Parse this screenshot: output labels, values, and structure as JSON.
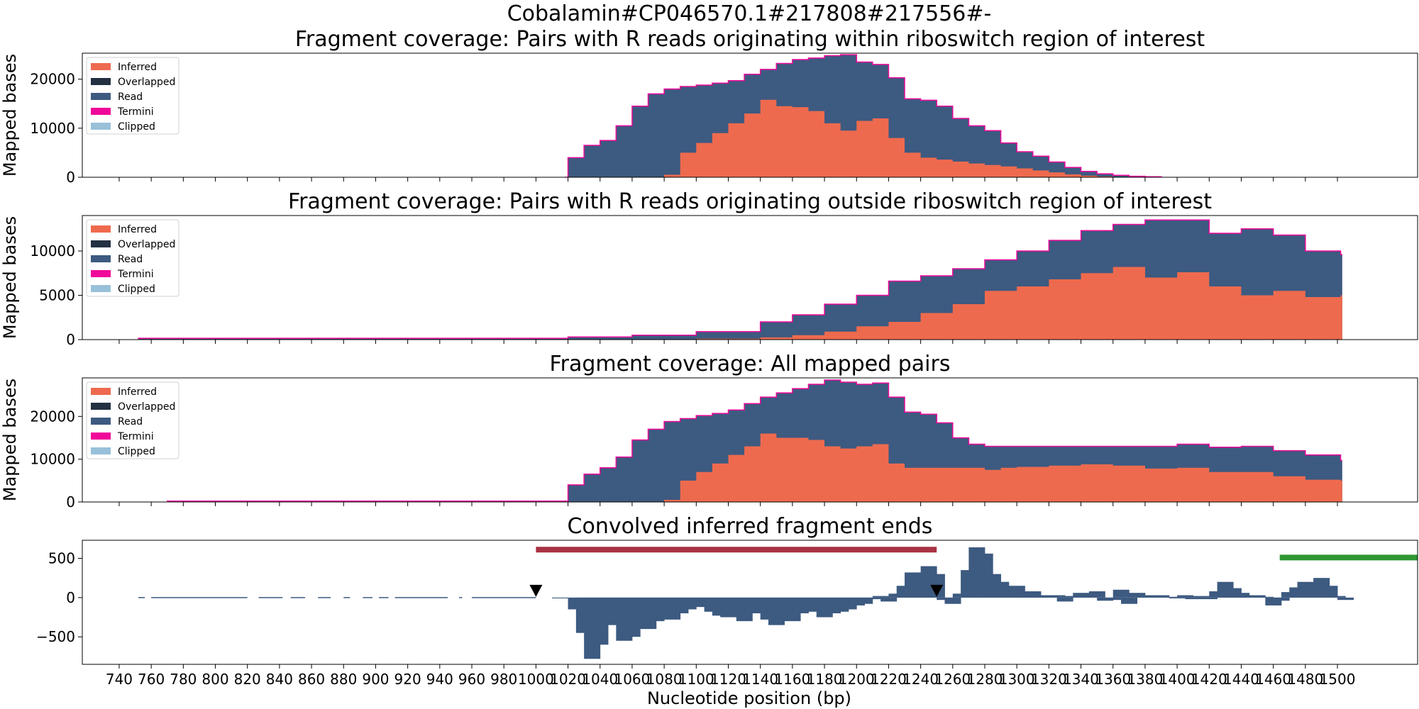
{
  "figure": {
    "suptitle": "Cobalamin#CP046570.1#217808#217556#-",
    "xlabel": "Nucleotide position (bp)"
  },
  "colors": {
    "Inferred": "#ee6a4e",
    "Overlapped": "#233042",
    "Read": "#3d5a80",
    "Termini": "#f0089a",
    "Clipped": "#98c1d9",
    "region_bar": "#a93242",
    "annotation_bar": "#2f9632",
    "marker": "#000000"
  },
  "chart_data": [
    {
      "type": "area",
      "title": "Fragment coverage: Pairs with R reads originating within riboswitch region of interest",
      "ylabel": "Mapped bases",
      "xlim": [
        717,
        1550
      ],
      "ylim": [
        0,
        25300
      ],
      "yticks": [
        0,
        10000,
        20000
      ],
      "legend": {
        "placement": "top-left",
        "entries": [
          "Inferred",
          "Overlapped",
          "Read",
          "Termini",
          "Clipped"
        ]
      },
      "x": [
        1018,
        1020,
        1030,
        1040,
        1050,
        1060,
        1070,
        1080,
        1090,
        1100,
        1110,
        1120,
        1130,
        1140,
        1150,
        1160,
        1170,
        1180,
        1190,
        1200,
        1210,
        1220,
        1230,
        1240,
        1250,
        1260,
        1270,
        1280,
        1290,
        1300,
        1310,
        1320,
        1330,
        1340,
        1350,
        1360,
        1370,
        1380,
        1390
      ],
      "series": [
        {
          "name": "Inferred",
          "values": [
            0,
            0,
            0,
            0,
            0,
            0,
            0,
            500,
            5000,
            7000,
            9000,
            11000,
            13000,
            15800,
            14500,
            14300,
            13500,
            11000,
            9500,
            11500,
            12000,
            8000,
            5000,
            4000,
            3600,
            3200,
            2800,
            2500,
            2200,
            1800,
            1400,
            1000,
            600,
            300,
            150,
            50,
            0,
            0,
            0
          ]
        },
        {
          "name": "Read",
          "values": [
            0,
            4000,
            6500,
            7500,
            10500,
            14500,
            17000,
            18000,
            18500,
            18800,
            19200,
            19700,
            21000,
            22000,
            23200,
            24000,
            24300,
            24800,
            25000,
            23500,
            23000,
            20300,
            16000,
            15700,
            14500,
            12000,
            10500,
            9500,
            7000,
            5200,
            4300,
            3100,
            2000,
            1200,
            700,
            400,
            200,
            100,
            0
          ]
        }
      ]
    },
    {
      "type": "area",
      "title": "Fragment coverage: Pairs with R reads originating outside riboswitch region of interest",
      "ylabel": "Mapped bases",
      "xlim": [
        717,
        1550
      ],
      "ylim": [
        0,
        14000
      ],
      "yticks": [
        0,
        5000,
        10000
      ],
      "legend": {
        "placement": "top-left",
        "entries": [
          "Inferred",
          "Overlapped",
          "Read",
          "Termini",
          "Clipped"
        ]
      },
      "x": [
        752,
        980,
        1020,
        1060,
        1100,
        1140,
        1160,
        1180,
        1200,
        1220,
        1240,
        1260,
        1280,
        1300,
        1320,
        1340,
        1360,
        1380,
        1400,
        1420,
        1440,
        1460,
        1480,
        1502
      ],
      "series": [
        {
          "name": "Inferred",
          "values": [
            0,
            0,
            0,
            0,
            100,
            250,
            500,
            900,
            1500,
            2000,
            3000,
            4000,
            5500,
            6000,
            6800,
            7500,
            8200,
            7000,
            7600,
            6000,
            5000,
            5500,
            4800,
            5000
          ]
        },
        {
          "name": "Read",
          "values": [
            150,
            150,
            300,
            500,
            900,
            2000,
            2800,
            4000,
            5000,
            6600,
            7200,
            8000,
            9000,
            10000,
            11200,
            12300,
            13000,
            13500,
            13500,
            12000,
            12500,
            11800,
            10000,
            9600
          ]
        }
      ]
    },
    {
      "type": "area",
      "title": "Fragment coverage: All mapped pairs",
      "ylabel": "Mapped bases",
      "xlim": [
        717,
        1550
      ],
      "ylim": [
        0,
        29000
      ],
      "yticks": [
        0,
        10000,
        20000
      ],
      "legend": {
        "placement": "top-left",
        "entries": [
          "Inferred",
          "Overlapped",
          "Read",
          "Termini",
          "Clipped"
        ]
      },
      "x": [
        770,
        1018,
        1020,
        1030,
        1040,
        1050,
        1060,
        1070,
        1080,
        1090,
        1100,
        1110,
        1120,
        1130,
        1140,
        1150,
        1160,
        1170,
        1180,
        1190,
        1200,
        1210,
        1220,
        1230,
        1240,
        1250,
        1260,
        1270,
        1280,
        1290,
        1300,
        1320,
        1340,
        1360,
        1380,
        1400,
        1420,
        1440,
        1460,
        1480,
        1502
      ],
      "series": [
        {
          "name": "Inferred",
          "values": [
            0,
            0,
            0,
            0,
            0,
            0,
            0,
            0,
            500,
            5000,
            7000,
            9000,
            11000,
            13000,
            16000,
            15000,
            15000,
            14500,
            13000,
            12500,
            13000,
            13500,
            9000,
            8000,
            8000,
            8000,
            8000,
            8000,
            7500,
            8000,
            8200,
            8500,
            8800,
            8500,
            7800,
            8000,
            7000,
            7000,
            6000,
            5200,
            5000
          ]
        },
        {
          "name": "Read",
          "values": [
            200,
            200,
            4000,
            6500,
            8000,
            10500,
            14500,
            17000,
            18800,
            19500,
            20200,
            20700,
            21500,
            23000,
            24500,
            25500,
            26500,
            27500,
            28500,
            28000,
            27500,
            27800,
            24500,
            21000,
            20500,
            18500,
            15000,
            13500,
            13000,
            13000,
            13000,
            13000,
            13000,
            13000,
            13000,
            13500,
            12800,
            13000,
            12000,
            11000,
            9700
          ]
        }
      ]
    },
    {
      "type": "bar",
      "title": "Convolved inferred fragment ends",
      "xlim": [
        717,
        1550
      ],
      "ylim": [
        -850,
        730
      ],
      "yticks": [
        -500,
        0,
        500
      ],
      "xticks": [
        740,
        760,
        780,
        800,
        820,
        840,
        860,
        880,
        900,
        920,
        940,
        960,
        980,
        1000,
        1020,
        1040,
        1060,
        1080,
        1100,
        1120,
        1140,
        1160,
        1180,
        1200,
        1220,
        1240,
        1260,
        1280,
        1300,
        1320,
        1340,
        1360,
        1380,
        1400,
        1420,
        1440,
        1460,
        1480,
        1500
      ],
      "x": [
        1010,
        1020,
        1025,
        1030,
        1035,
        1040,
        1045,
        1050,
        1055,
        1060,
        1065,
        1070,
        1075,
        1080,
        1085,
        1090,
        1095,
        1100,
        1105,
        1110,
        1115,
        1120,
        1125,
        1130,
        1135,
        1140,
        1145,
        1150,
        1155,
        1160,
        1165,
        1170,
        1175,
        1180,
        1185,
        1190,
        1195,
        1200,
        1205,
        1210,
        1215,
        1220,
        1225,
        1230,
        1235,
        1240,
        1245,
        1250,
        1255,
        1260,
        1265,
        1270,
        1275,
        1280,
        1285,
        1290,
        1295,
        1300,
        1305,
        1310,
        1315,
        1320,
        1325,
        1330,
        1335,
        1340,
        1345,
        1350,
        1355,
        1360,
        1365,
        1370,
        1375,
        1380,
        1385,
        1390,
        1395,
        1400,
        1405,
        1410,
        1415,
        1420,
        1425,
        1430,
        1435,
        1440,
        1445,
        1450,
        1455,
        1460,
        1465,
        1470,
        1475,
        1480,
        1485,
        1490,
        1495,
        1500
      ],
      "values": [
        -10,
        -150,
        -450,
        -780,
        -600,
        -350,
        -300,
        -550,
        -500,
        -350,
        -400,
        -300,
        -250,
        -280,
        -200,
        -150,
        -100,
        -120,
        -180,
        -230,
        -250,
        -200,
        -300,
        -180,
        -200,
        -280,
        -350,
        -250,
        -300,
        -200,
        -150,
        -180,
        -250,
        -200,
        -180,
        -150,
        -100,
        -80,
        -20,
        20,
        -50,
        50,
        150,
        320,
        220,
        400,
        300,
        -30,
        -80,
        50,
        350,
        640,
        560,
        300,
        200,
        100,
        150,
        50,
        80,
        30,
        20,
        30,
        -50,
        20,
        60,
        30,
        80,
        -40,
        -30,
        100,
        -80,
        60,
        30,
        20,
        30,
        10,
        -10,
        30,
        -20,
        20,
        -20,
        80,
        200,
        120,
        60,
        20,
        30,
        10,
        -100,
        -40,
        70,
        130,
        200,
        80,
        250,
        150,
        20,
        -30
      ],
      "baseline_segments": [
        [
          752,
          756
        ],
        [
          760,
          820
        ],
        [
          827,
          842
        ],
        [
          847,
          856
        ],
        [
          864,
          872
        ],
        [
          880,
          884
        ],
        [
          892,
          898
        ],
        [
          902,
          908
        ],
        [
          912,
          945
        ],
        [
          952,
          954
        ],
        [
          960,
          1000
        ]
      ],
      "markers": [
        {
          "x": 1000,
          "y": 0
        },
        {
          "x": 1250,
          "y": 0
        }
      ],
      "region_bars": [
        {
          "start": 1000,
          "end": 1250,
          "y": 610,
          "color": "region_bar"
        },
        {
          "start": 1464,
          "end": 1550,
          "y": 510,
          "color": "annotation_bar"
        }
      ]
    }
  ]
}
